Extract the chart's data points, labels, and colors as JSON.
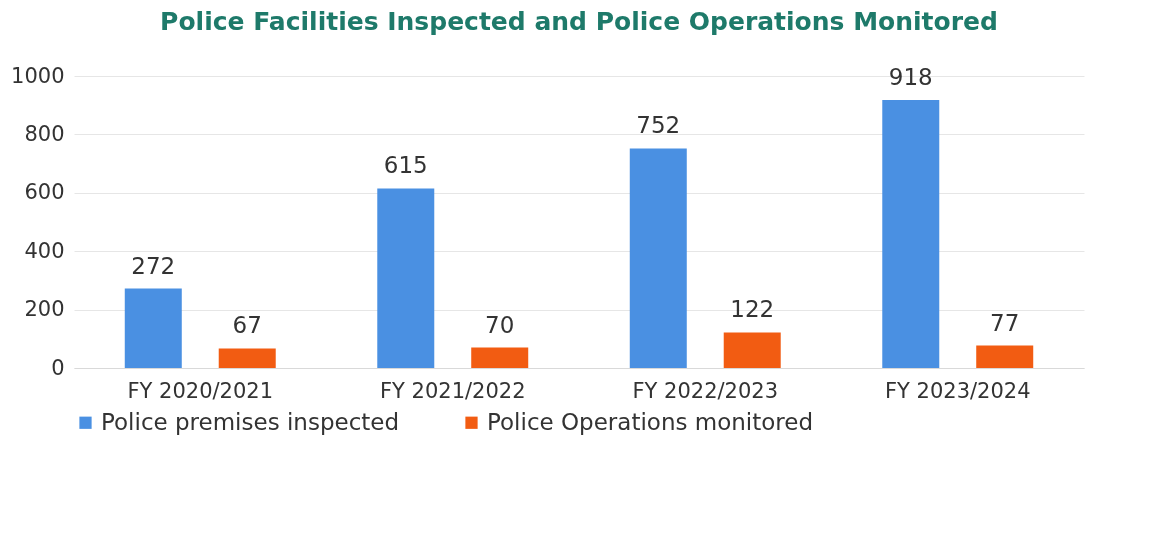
{
  "chart_data": {
    "type": "bar",
    "title": "Police Facilities Inspected and Police Operations Monitored",
    "categories": [
      "FY 2020/2021",
      "FY 2021/2022",
      "FY 2022/2023",
      "FY 2023/2024"
    ],
    "series": [
      {
        "name": "Police premises inspected",
        "color": "#4a90e2",
        "values": [
          272,
          615,
          752,
          918
        ]
      },
      {
        "name": "Police Operations monitored",
        "color": "#f25c12",
        "values": [
          67,
          70,
          122,
          77
        ]
      }
    ],
    "ylim": [
      0,
      1000
    ],
    "yticks": [
      0,
      200,
      400,
      600,
      800,
      1000
    ],
    "grid": "y",
    "legend": "bottom",
    "data_labels": true
  }
}
